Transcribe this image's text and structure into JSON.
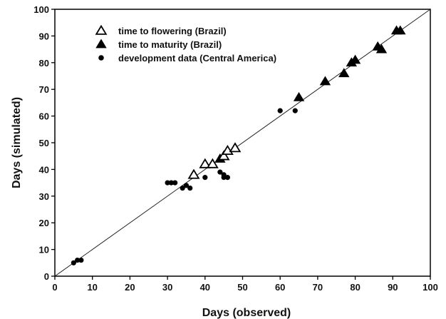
{
  "chart_data": {
    "type": "scatter",
    "xlabel": "Days (observed)",
    "ylabel": "Days (simulated)",
    "xlim": [
      0,
      100
    ],
    "ylim": [
      0,
      100
    ],
    "xticks": [
      "0",
      "10",
      "20",
      "30",
      "40",
      "50",
      "60",
      "70",
      "80",
      "90",
      "100"
    ],
    "yticks": [
      "0",
      "10",
      "20",
      "30",
      "40",
      "50",
      "60",
      "70",
      "80",
      "90",
      "100"
    ],
    "grid": false,
    "legend_position": "top-left",
    "reference_line": {
      "from": [
        0,
        0
      ],
      "to": [
        100,
        100
      ]
    },
    "series": [
      {
        "name": "time to flowering (Brazil)",
        "marker": "triangle-open",
        "color": "#000000",
        "points": [
          [
            37,
            38
          ],
          [
            40,
            42
          ],
          [
            42,
            42
          ],
          [
            45,
            45
          ],
          [
            46,
            47
          ],
          [
            48,
            48
          ]
        ]
      },
      {
        "name": "time to maturity (Brazil)",
        "marker": "triangle-filled",
        "color": "#000000",
        "points": [
          [
            44,
            44
          ],
          [
            65,
            67
          ],
          [
            72,
            73
          ],
          [
            77,
            76
          ],
          [
            79,
            80
          ],
          [
            80,
            81
          ],
          [
            86,
            86
          ],
          [
            87,
            85
          ],
          [
            91,
            92
          ],
          [
            92,
            92
          ]
        ]
      },
      {
        "name": "development data (Central America)",
        "marker": "circle-filled",
        "color": "#000000",
        "points": [
          [
            5,
            5
          ],
          [
            6,
            6
          ],
          [
            7,
            6
          ],
          [
            30,
            35
          ],
          [
            31,
            35
          ],
          [
            32,
            35
          ],
          [
            34,
            33
          ],
          [
            35,
            34
          ],
          [
            36,
            33
          ],
          [
            40,
            37
          ],
          [
            44,
            39
          ],
          [
            45,
            38
          ],
          [
            45,
            37
          ],
          [
            46,
            37
          ],
          [
            60,
            62
          ],
          [
            64,
            62
          ]
        ]
      }
    ]
  }
}
